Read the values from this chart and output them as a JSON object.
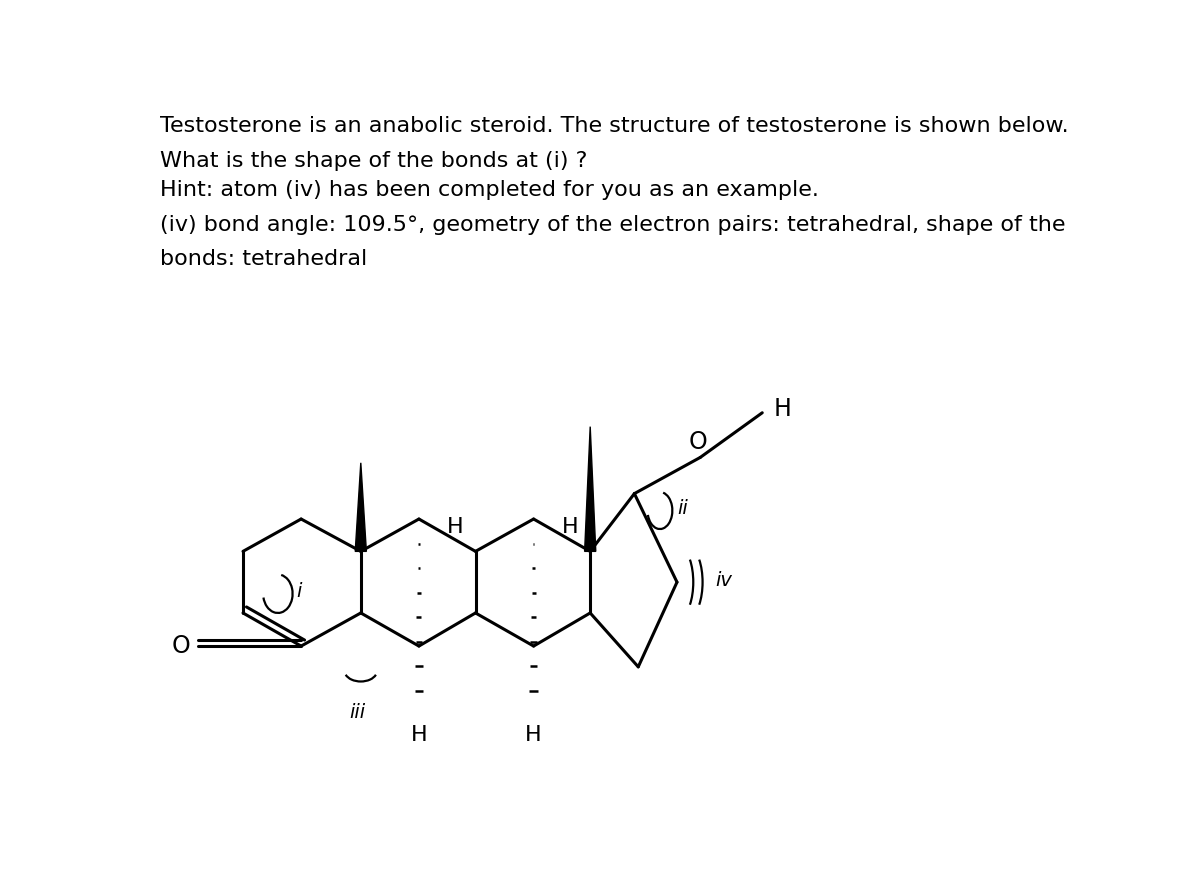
{
  "title_text": "Testosterone is an anabolic steroid. The structure of testosterone is shown below.",
  "question_text": "What is the shape of the bonds at (i) ?",
  "hint_text": "Hint: atom (iv) has been completed for you as an example.",
  "answer_text": "(iv) bond angle: 109.5°, geometry of the electron pairs: tetrahedral, shape of the\nbonds: tetrahedral",
  "background_color": "#ffffff",
  "line_color": "#000000",
  "text_color": "#000000",
  "fontsize_body": 16,
  "fontsize_label": 14
}
